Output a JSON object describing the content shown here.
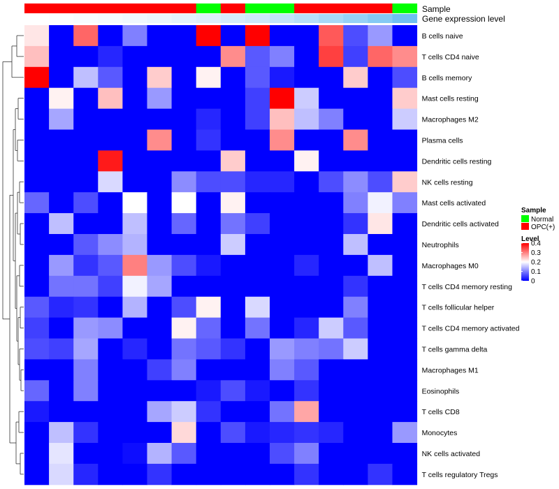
{
  "chart_data": {
    "type": "heatmap",
    "title": "",
    "annotation_labels": {
      "sample": "Sample",
      "gene_expression": "Gene expression level"
    },
    "sample_annotation": [
      "OPC(+)",
      "OPC(+)",
      "OPC(+)",
      "OPC(+)",
      "OPC(+)",
      "OPC(+)",
      "OPC(+)",
      "Normal",
      "OPC(+)",
      "Normal",
      "Normal",
      "OPC(+)",
      "OPC(+)",
      "OPC(+)",
      "OPC(+)",
      "Normal"
    ],
    "gene_expression_annotation": [
      0.0,
      0.02,
      0.04,
      0.06,
      0.09,
      0.12,
      0.16,
      0.2,
      0.25,
      0.3,
      0.36,
      0.43,
      0.52,
      0.62,
      0.72,
      0.85
    ],
    "rows": [
      "B cells naive",
      "T cells CD4 naive",
      "B cells memory",
      "Mast cells resting",
      "Macrophages M2",
      "Plasma cells",
      "Dendritic cells resting",
      "NK cells resting",
      "Mast cells activated",
      "Dendritic cells activated",
      "Neutrophils",
      "Macrophages M0",
      "T cells CD4 memory resting",
      "T cells follicular helper",
      "T cells CD4 memory activated",
      "T cells gamma delta",
      "Macrophages M1",
      "Eosinophils",
      "T cells CD8",
      "Monocytes",
      "NK cells activated",
      "T cells regulatory  Tregs"
    ],
    "values": [
      [
        0.22,
        0.0,
        0.32,
        0.0,
        0.1,
        0.0,
        0.0,
        0.4,
        0.0,
        0.4,
        0.0,
        0.0,
        0.33,
        0.06,
        0.12,
        0.0
      ],
      [
        0.25,
        0.0,
        0.0,
        0.03,
        0.0,
        0.0,
        0.0,
        0.0,
        0.29,
        0.07,
        0.1,
        0.0,
        0.35,
        0.05,
        0.32,
        0.29
      ],
      [
        0.4,
        0.0,
        0.15,
        0.07,
        0.0,
        0.24,
        0.0,
        0.21,
        0.0,
        0.07,
        0.02,
        0.0,
        0.0,
        0.24,
        0.0,
        0.06
      ],
      [
        0.0,
        0.21,
        0.0,
        0.25,
        0.0,
        0.12,
        0.0,
        0.0,
        0.0,
        0.05,
        0.4,
        0.16,
        0.0,
        0.0,
        0.0,
        0.24
      ],
      [
        0.0,
        0.13,
        0.0,
        0.0,
        0.0,
        0.0,
        0.0,
        0.03,
        0.0,
        0.05,
        0.25,
        0.15,
        0.1,
        0.0,
        0.0,
        0.16
      ],
      [
        0.0,
        0.0,
        0.0,
        0.0,
        0.0,
        0.29,
        0.0,
        0.04,
        0.0,
        0.0,
        0.29,
        0.0,
        0.0,
        0.29,
        0.0,
        0.0
      ],
      [
        0.0,
        0.0,
        0.0,
        0.38,
        0.0,
        0.0,
        0.0,
        0.0,
        0.24,
        0.0,
        0.0,
        0.21,
        0.0,
        0.0,
        0.0,
        0.0
      ],
      [
        0.0,
        0.0,
        0.0,
        0.17,
        0.0,
        0.0,
        0.11,
        0.06,
        0.06,
        0.03,
        0.03,
        0.0,
        0.06,
        0.11,
        0.06,
        0.24
      ],
      [
        0.08,
        0.0,
        0.06,
        0.0,
        0.2,
        0.0,
        0.2,
        0.0,
        0.21,
        0.0,
        0.0,
        0.0,
        0.0,
        0.1,
        0.19,
        0.1
      ],
      [
        0.0,
        0.15,
        0.0,
        0.0,
        0.15,
        0.0,
        0.08,
        0.0,
        0.09,
        0.05,
        0.0,
        0.0,
        0.0,
        0.04,
        0.22,
        0.0
      ],
      [
        0.0,
        0.0,
        0.07,
        0.11,
        0.14,
        0.0,
        0.0,
        0.0,
        0.16,
        0.0,
        0.0,
        0.0,
        0.0,
        0.15,
        0.0,
        0.0
      ],
      [
        0.0,
        0.12,
        0.04,
        0.07,
        0.3,
        0.12,
        0.06,
        0.02,
        0.0,
        0.0,
        0.0,
        0.03,
        0.0,
        0.0,
        0.15,
        0.0
      ],
      [
        0.0,
        0.09,
        0.09,
        0.05,
        0.19,
        0.13,
        0.0,
        0.0,
        0.0,
        0.0,
        0.0,
        0.0,
        0.0,
        0.04,
        0.0,
        0.0
      ],
      [
        0.07,
        0.03,
        0.04,
        0.0,
        0.14,
        0.0,
        0.06,
        0.21,
        0.0,
        0.17,
        0.0,
        0.0,
        0.0,
        0.1,
        0.0,
        0.0
      ],
      [
        0.05,
        0.0,
        0.12,
        0.11,
        0.0,
        0.0,
        0.21,
        0.08,
        0.0,
        0.09,
        0.0,
        0.03,
        0.16,
        0.07,
        0.0,
        0.0
      ],
      [
        0.06,
        0.05,
        0.13,
        0.0,
        0.03,
        0.0,
        0.09,
        0.07,
        0.04,
        0.0,
        0.12,
        0.1,
        0.09,
        0.16,
        0.0,
        0.0
      ],
      [
        0.0,
        0.0,
        0.1,
        0.0,
        0.0,
        0.05,
        0.1,
        0.0,
        0.0,
        0.0,
        0.1,
        0.07,
        0.0,
        0.0,
        0.0,
        0.0
      ],
      [
        0.08,
        0.0,
        0.1,
        0.0,
        0.0,
        0.0,
        0.0,
        0.02,
        0.06,
        0.02,
        0.0,
        0.04,
        0.0,
        0.0,
        0.0,
        0.0
      ],
      [
        0.02,
        0.0,
        0.0,
        0.0,
        0.0,
        0.13,
        0.16,
        0.04,
        0.0,
        0.0,
        0.09,
        0.27,
        0.0,
        0.0,
        0.0,
        0.0
      ],
      [
        0.0,
        0.15,
        0.04,
        0.0,
        0.0,
        0.0,
        0.23,
        0.0,
        0.06,
        0.02,
        0.03,
        0.04,
        0.03,
        0.0,
        0.0,
        0.12
      ],
      [
        0.0,
        0.18,
        0.0,
        0.0,
        0.01,
        0.14,
        0.07,
        0.0,
        0.0,
        0.0,
        0.06,
        0.1,
        0.0,
        0.0,
        0.0,
        0.0
      ],
      [
        0.0,
        0.17,
        0.03,
        0.0,
        0.0,
        0.04,
        0.0,
        0.0,
        0.0,
        0.0,
        0.0,
        0.04,
        0.0,
        0.0,
        0.04,
        0.0
      ]
    ],
    "color_scale": {
      "min": 0,
      "mid": 0.2,
      "max": 0.4,
      "low": "#0000FF",
      "middle": "#FFFFFF",
      "high": "#FF0000"
    },
    "legend": {
      "sample_title": "Sample",
      "sample_entries": [
        {
          "label": "Normal",
          "color": "#00FF00"
        },
        {
          "label": "OPC(+)",
          "color": "#FF0000"
        }
      ],
      "level_title": "Level",
      "level_ticks": [
        "0.4",
        "0.3",
        "0.2",
        "0.1",
        "0"
      ],
      "level_tick_values": [
        0.4,
        0.3,
        0.2,
        0.1,
        0
      ]
    },
    "expression_gradient": {
      "low": "#FFFFFF",
      "high": "#56B4F0"
    },
    "dendrogram": "row clustering dendrogram (left)"
  }
}
